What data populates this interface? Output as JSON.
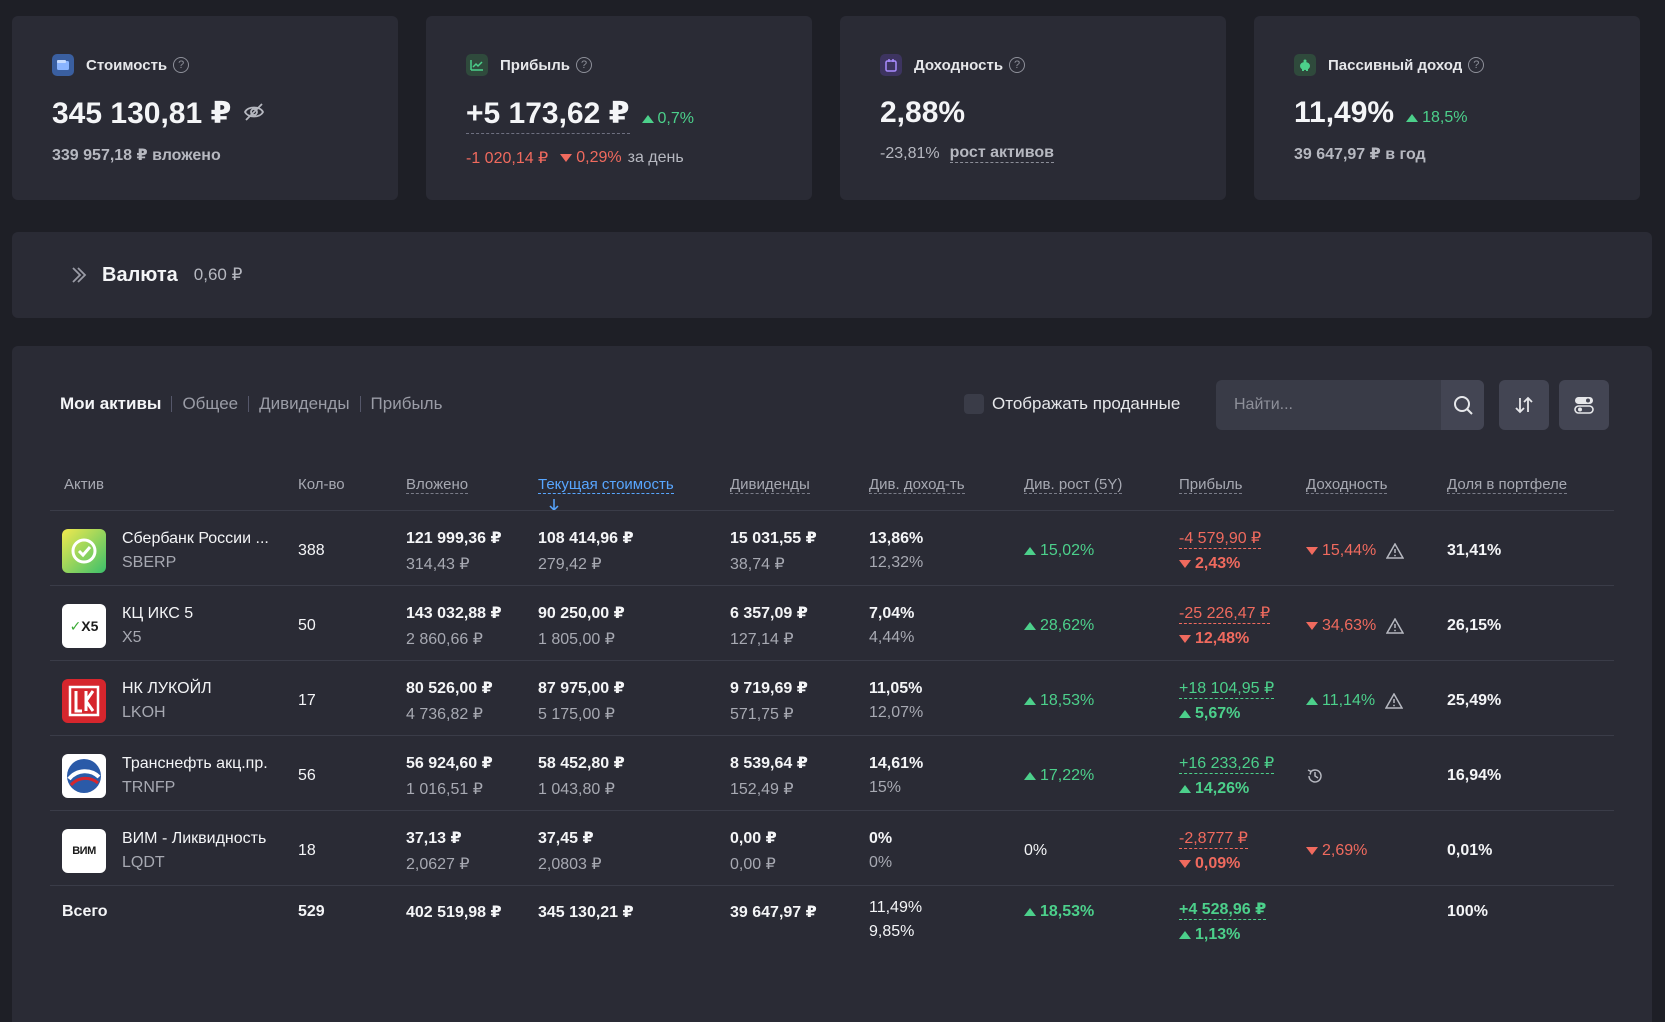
{
  "colors": {
    "up": "#4cd08b",
    "down": "#f06a5e",
    "accent": "#58a6ff",
    "card": "#2a2b35",
    "bg": "#1e1f26"
  },
  "stats": {
    "cost": {
      "title": "Стоимость",
      "value": "345 130,81 ₽",
      "sub": "339 957,18 ₽ вложено",
      "icon": "wallet-icon"
    },
    "profit": {
      "title": "Прибыль",
      "value": "+5 173,62 ₽",
      "change": "0,7%",
      "day_value": "-1 020,14 ₽",
      "day_pct": "0,29%",
      "day_label": "за день",
      "icon": "chart-icon"
    },
    "yield": {
      "title": "Доходность",
      "value": "2,88%",
      "sub_value": "-23,81%",
      "sub_label": "рост активов",
      "icon": "calendar-icon"
    },
    "passive": {
      "title": "Пассивный доход",
      "value": "11,49%",
      "change": "18,5%",
      "sub": "39 647,97 ₽ в год",
      "icon": "piggy-bank-icon"
    }
  },
  "valuta": {
    "title": "Валюта",
    "value": "0,60 ₽"
  },
  "tabs": [
    "Мои активы",
    "Общее",
    "Дивиденды",
    "Прибыль"
  ],
  "show_sold_label": "Отображать проданные",
  "search": {
    "placeholder": "Найти..."
  },
  "columns": [
    "Актив",
    "Кол-во",
    "Вложено",
    "Текущая стоимость",
    "Дивиденды",
    "Див. доход-ть",
    "Див. рост (5Y)",
    "Прибыль",
    "Доходность",
    "Доля в портфеле"
  ],
  "rows": [
    {
      "name": "Сбербанк России ...",
      "ticker": "SBERP",
      "qty": "388",
      "invested": "121 999,36 ₽",
      "invested_unit": "314,43 ₽",
      "current": "108 414,96 ₽",
      "current_unit": "279,42 ₽",
      "div": "15 031,55 ₽",
      "div_unit": "38,74 ₽",
      "div_yield": "13,86%",
      "div_yield2": "12,32%",
      "div_growth": "15,02%",
      "profit": "-4 579,90 ₽",
      "profit_pct": "2,43%",
      "profit_dir": "down",
      "yield": "15,44%",
      "yield_dir": "down",
      "warn": true,
      "share": "31,41%",
      "logo": "sber"
    },
    {
      "name": "КЦ ИКС 5",
      "ticker": "X5",
      "qty": "50",
      "invested": "143 032,88 ₽",
      "invested_unit": "2 860,66 ₽",
      "current": "90 250,00 ₽",
      "current_unit": "1 805,00 ₽",
      "div": "6 357,09 ₽",
      "div_unit": "127,14 ₽",
      "div_yield": "7,04%",
      "div_yield2": "4,44%",
      "div_growth": "28,62%",
      "profit": "-25 226,47 ₽",
      "profit_pct": "12,48%",
      "profit_dir": "down",
      "yield": "34,63%",
      "yield_dir": "down",
      "warn": true,
      "share": "26,15%",
      "logo": "x5"
    },
    {
      "name": "НК ЛУКОЙЛ",
      "ticker": "LKOH",
      "qty": "17",
      "invested": "80 526,00 ₽",
      "invested_unit": "4 736,82 ₽",
      "current": "87 975,00 ₽",
      "current_unit": "5 175,00 ₽",
      "div": "9 719,69 ₽",
      "div_unit": "571,75 ₽",
      "div_yield": "11,05%",
      "div_yield2": "12,07%",
      "div_growth": "18,53%",
      "profit": "+18 104,95 ₽",
      "profit_pct": "5,67%",
      "profit_dir": "up",
      "yield": "11,14%",
      "yield_dir": "up",
      "warn": true,
      "share": "25,49%",
      "logo": "luk"
    },
    {
      "name": "Транснефть акц.пр.",
      "ticker": "TRNFP",
      "qty": "56",
      "invested": "56 924,60 ₽",
      "invested_unit": "1 016,51 ₽",
      "current": "58 452,80 ₽",
      "current_unit": "1 043,80 ₽",
      "div": "8 539,64 ₽",
      "div_unit": "152,49 ₽",
      "div_yield": "14,61%",
      "div_yield2": "15%",
      "div_growth": "17,22%",
      "profit": "+16 233,26 ₽",
      "profit_pct": "14,26%",
      "profit_dir": "up",
      "yield": "",
      "yield_dir": "history",
      "warn": false,
      "share": "16,94%",
      "logo": "trn"
    },
    {
      "name": "ВИМ - Ликвидность",
      "ticker": "LQDT",
      "qty": "18",
      "invested": "37,13 ₽",
      "invested_unit": "2,0627 ₽",
      "current": "37,45 ₽",
      "current_unit": "2,0803 ₽",
      "div": "0,00 ₽",
      "div_unit": "0,00 ₽",
      "div_yield": "0%",
      "div_yield2": "0%",
      "div_growth": "0%",
      "profit": "-2,8777 ₽",
      "profit_pct": "0,09%",
      "profit_dir": "down",
      "yield": "2,69%",
      "yield_dir": "down",
      "warn": false,
      "share": "0,01%",
      "logo": "vim"
    }
  ],
  "total": {
    "label": "Всего",
    "qty": "529",
    "invested": "402 519,98 ₽",
    "current": "345 130,21 ₽",
    "div": "39 647,97 ₽",
    "div_yield": "11,49%",
    "div_yield2": "9,85%",
    "div_growth": "18,53%",
    "profit": "+4 528,96 ₽",
    "profit_pct": "1,13%",
    "share": "100%"
  },
  "logo_texts": {
    "x5": "X5",
    "vim": "ВИМ"
  }
}
